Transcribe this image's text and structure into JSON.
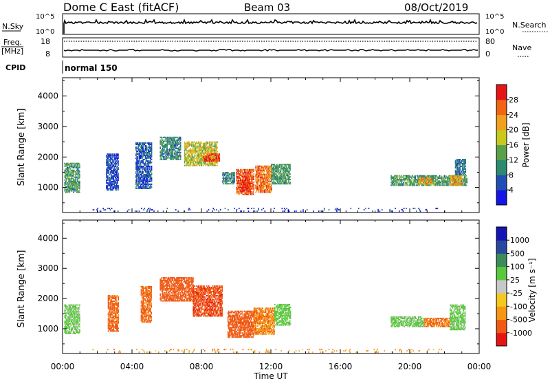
{
  "header": {
    "station": "Dome C East (fitACF)",
    "beam": "Beam 03",
    "date": "08/Oct/2019"
  },
  "strip": {
    "nsky_label": "N.Sky",
    "nsky_ticks": [
      "10^5",
      "10^0"
    ],
    "nsearch_label": "N.Search",
    "nsearch_ticks": [
      "10^5",
      "10^0"
    ],
    "freq_label": "Freq.",
    "freq_unit": "[MHz]",
    "freq_ticks": [
      "18",
      "8"
    ],
    "nave_label": "Nave",
    "nave_ticks": [
      "80",
      "0"
    ],
    "cpid_label": "CPID",
    "cpid_value": "normal 150"
  },
  "colors": {
    "power": [
      "#1414e6",
      "#1f4fb4",
      "#2c8a6e",
      "#5aa04a",
      "#c8c81e",
      "#f0a01e",
      "#f06414",
      "#e61414"
    ],
    "velocity": [
      "#e61414",
      "#f05a14",
      "#f59614",
      "#f5c81e",
      "#c8c8c8",
      "#5ac83c",
      "#3c8c5a",
      "#2848a0",
      "#1414b4"
    ]
  },
  "chart_data": [
    {
      "type": "heatmap",
      "name": "power",
      "xlabel": "",
      "ylabel": "Slant Range [km]",
      "x_ticks": [
        "00:00",
        "04:00",
        "08:00",
        "12:00",
        "16:00",
        "20:00",
        "00:00"
      ],
      "xlim_hours": [
        0,
        24
      ],
      "ylim_km": [
        180,
        4600
      ],
      "y_ticks": [
        1000,
        2000,
        3000,
        4000
      ],
      "colorbar": {
        "label": "Power [dB]",
        "range": [
          0,
          32
        ],
        "ticks": [
          "4",
          "8",
          "12",
          "16",
          "20",
          "24",
          "28"
        ]
      },
      "echo_regions": [
        {
          "t0": 0.1,
          "t1": 1.0,
          "r0": 820,
          "r1": 1800,
          "value": 12
        },
        {
          "t0": 2.5,
          "t1": 3.2,
          "r0": 900,
          "r1": 2100,
          "value": 5
        },
        {
          "t0": 4.2,
          "t1": 5.1,
          "r0": 950,
          "r1": 2450,
          "value": 6
        },
        {
          "t0": 5.6,
          "t1": 6.8,
          "r0": 1900,
          "r1": 2650,
          "value": 10
        },
        {
          "t0": 7.0,
          "t1": 8.9,
          "r0": 1700,
          "r1": 2500,
          "value": 18
        },
        {
          "t0": 8.1,
          "t1": 9.0,
          "r0": 1850,
          "r1": 2100,
          "value": 27
        },
        {
          "t0": 9.2,
          "t1": 9.9,
          "r0": 1100,
          "r1": 1500,
          "value": 10
        },
        {
          "t0": 10.0,
          "t1": 11.0,
          "r0": 750,
          "r1": 1600,
          "value": 27
        },
        {
          "t0": 10.2,
          "t1": 10.8,
          "r0": 850,
          "r1": 1250,
          "value": 30
        },
        {
          "t0": 11.1,
          "t1": 12.0,
          "r0": 820,
          "r1": 1700,
          "value": 25
        },
        {
          "t0": 12.0,
          "t1": 13.1,
          "r0": 1100,
          "r1": 1750,
          "value": 12
        },
        {
          "t0": 18.9,
          "t1": 23.3,
          "r0": 1050,
          "r1": 1400,
          "value": 12
        },
        {
          "t0": 20.5,
          "t1": 21.3,
          "r0": 1100,
          "r1": 1300,
          "value": 22
        },
        {
          "t0": 22.3,
          "t1": 23.0,
          "r0": 1050,
          "r1": 1400,
          "value": 22
        },
        {
          "t0": 22.6,
          "t1": 23.2,
          "r0": 1400,
          "r1": 1900,
          "value": 8
        },
        {
          "t0": 1.5,
          "t1": 22.0,
          "r0": 200,
          "r1": 320,
          "value": 4
        }
      ]
    },
    {
      "type": "heatmap",
      "name": "velocity",
      "xlabel": "Time UT",
      "ylabel": "Slant Range [km]",
      "x_ticks": [
        "00:00",
        "04:00",
        "08:00",
        "12:00",
        "16:00",
        "20:00",
        "00:00"
      ],
      "xlim_hours": [
        0,
        24
      ],
      "ylim_km": [
        180,
        4600
      ],
      "y_ticks": [
        1000,
        2000,
        3000,
        4000
      ],
      "colorbar": {
        "label": "Velocity [m s⁻¹]",
        "ticks": [
          "1000",
          "500",
          "100",
          "25",
          "-25",
          "-100",
          "-500",
          "-1000"
        ]
      },
      "echo_regions": [
        {
          "t0": 0.1,
          "t1": 1.0,
          "r0": 820,
          "r1": 1800,
          "value": 150
        },
        {
          "t0": 2.6,
          "t1": 3.2,
          "r0": 900,
          "r1": 2100,
          "value": -150
        },
        {
          "t0": 4.5,
          "t1": 5.1,
          "r0": 1200,
          "r1": 2400,
          "value": -150
        },
        {
          "t0": 5.6,
          "t1": 7.5,
          "r0": 1900,
          "r1": 2700,
          "value": -300
        },
        {
          "t0": 7.5,
          "t1": 9.2,
          "r0": 1400,
          "r1": 2400,
          "value": -400
        },
        {
          "t0": 9.5,
          "t1": 11.0,
          "r0": 700,
          "r1": 1600,
          "value": -250
        },
        {
          "t0": 11.0,
          "t1": 12.2,
          "r0": 800,
          "r1": 1700,
          "value": -80
        },
        {
          "t0": 12.2,
          "t1": 13.1,
          "r0": 1100,
          "r1": 1800,
          "value": 200
        },
        {
          "t0": 18.9,
          "t1": 20.8,
          "r0": 1050,
          "r1": 1400,
          "value": 150
        },
        {
          "t0": 20.8,
          "t1": 22.3,
          "r0": 1050,
          "r1": 1350,
          "value": -120
        },
        {
          "t0": 22.3,
          "t1": 23.2,
          "r0": 950,
          "r1": 1800,
          "value": 150
        },
        {
          "t0": 1.5,
          "t1": 22.0,
          "r0": 200,
          "r1": 300,
          "value": -60
        }
      ]
    }
  ]
}
